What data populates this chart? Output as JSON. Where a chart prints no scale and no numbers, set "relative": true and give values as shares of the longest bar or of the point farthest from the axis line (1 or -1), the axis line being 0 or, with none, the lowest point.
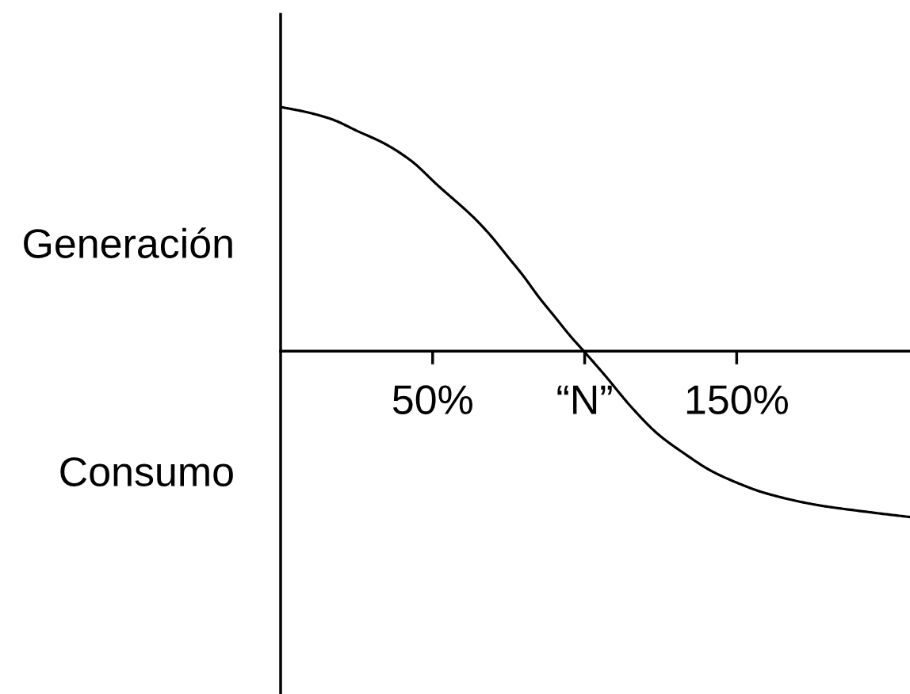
{
  "chart_data": {
    "type": "line",
    "relative": true,
    "x": [
      0,
      8.2,
      16.8,
      25.5,
      34.2,
      42.9,
      51.6,
      64.1,
      69.3,
      74.5,
      79.7,
      85.0,
      90.2,
      95.4,
      99.7,
      106.7,
      115.4,
      124.1,
      132.8,
      141.5,
      150.2,
      158.9,
      176.2,
      193.6,
      207
    ],
    "series": [
      {
        "color": "#000000",
        "values": [
          1.0,
          0.98,
          0.95,
          0.9,
          0.85,
          0.78,
          0.68,
          0.54,
          0.47,
          0.39,
          0.31,
          0.22,
          0.14,
          0.06,
          0.0,
          -0.1,
          -0.23,
          -0.34,
          -0.42,
          -0.49,
          -0.54,
          -0.58,
          -0.63,
          -0.66,
          -0.68
        ]
      }
    ],
    "xlim": [
      0,
      207
    ],
    "xticks": [
      {
        "value": 50,
        "label": "50%"
      },
      {
        "value": 100,
        "label": "“N”"
      },
      {
        "value": 150,
        "label": "150%"
      }
    ],
    "annotations": [
      "Generación",
      "Consumo"
    ]
  }
}
